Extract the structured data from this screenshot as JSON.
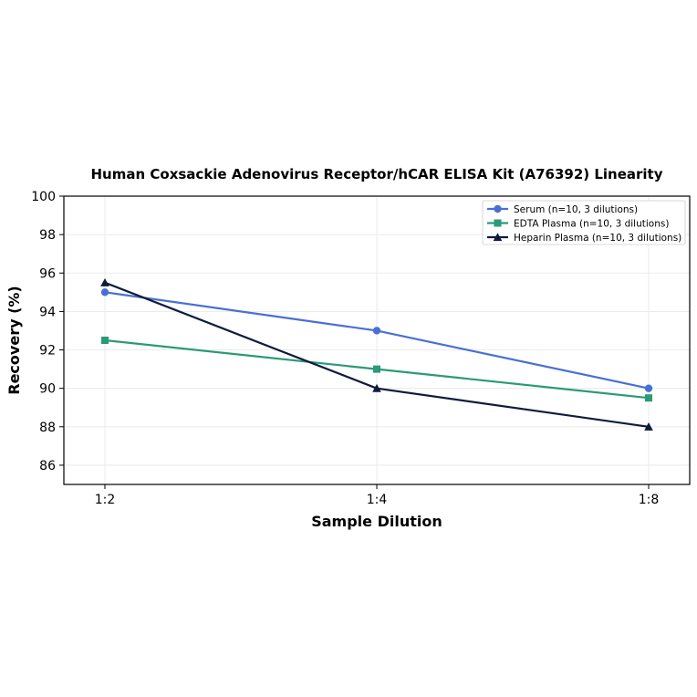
{
  "chart_data": {
    "type": "line",
    "title": "Human Coxsackie Adenovirus Receptor/hCAR ELISA Kit (A76392) Linearity",
    "xlabel": "Sample Dilution",
    "ylabel": "Recovery (%)",
    "categories": [
      "1:2",
      "1:4",
      "1:8"
    ],
    "ylim": [
      85,
      100
    ],
    "yticks": [
      86,
      88,
      90,
      92,
      94,
      96,
      98,
      100
    ],
    "grid": true,
    "legend_position": "top-right",
    "series": [
      {
        "name": "Serum (n=10, 3 dilutions)",
        "values": [
          95,
          93,
          90
        ],
        "color": "#4a6fd4",
        "marker": "circle"
      },
      {
        "name": "EDTA Plasma (n=10, 3 dilutions)",
        "values": [
          92.5,
          91,
          89.5
        ],
        "color": "#2a9a78",
        "marker": "square"
      },
      {
        "name": "Heparin Plasma (n=10, 3 dilutions)",
        "values": [
          95.5,
          90,
          88
        ],
        "color": "#0f1b3d",
        "marker": "triangle"
      }
    ]
  }
}
